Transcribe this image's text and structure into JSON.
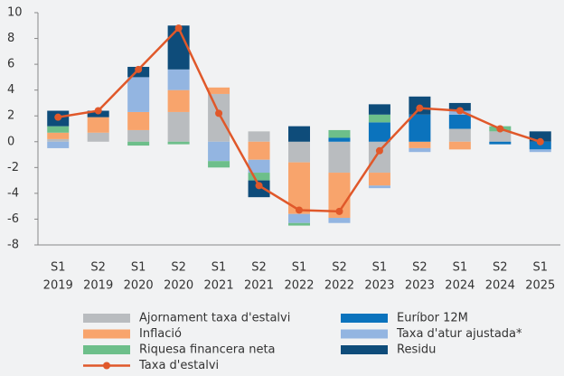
{
  "chart_data": {
    "type": "bar",
    "categories": [
      [
        "S1",
        "2019"
      ],
      [
        "S2",
        "2019"
      ],
      [
        "S1",
        "2020"
      ],
      [
        "S2",
        "2020"
      ],
      [
        "S1",
        "2021"
      ],
      [
        "S2",
        "2021"
      ],
      [
        "S1",
        "2022"
      ],
      [
        "S2",
        "2022"
      ],
      [
        "S1",
        "2023"
      ],
      [
        "S2",
        "2023"
      ],
      [
        "S1",
        "2024"
      ],
      [
        "S2",
        "2024"
      ],
      [
        "S1",
        "2025"
      ]
    ],
    "series": [
      {
        "name": "Ajornament taxa d'estalvi",
        "color": "#b9bcbf",
        "values": [
          0.2,
          0.7,
          0.9,
          2.3,
          3.7,
          0.8,
          -1.6,
          -2.4,
          -2.4,
          0,
          1.0,
          0.8,
          0
        ]
      },
      {
        "name": "Inflació",
        "color": "#f8a46c",
        "values": [
          0.5,
          1.2,
          1.4,
          1.7,
          0.5,
          -1.4,
          -4.0,
          -3.5,
          -1.0,
          -0.5,
          -0.6,
          0,
          0
        ]
      },
      {
        "name": "Riquesa financera neta",
        "color": "#6dbf8a",
        "values": [
          0.5,
          0,
          -0.3,
          -0.2,
          -0.5,
          -0.6,
          -0.2,
          0.6,
          0.6,
          0,
          0,
          0.4,
          0
        ]
      },
      {
        "name": "Euríbor 12M",
        "color": "#0b73bd",
        "values": [
          0,
          0,
          0,
          0,
          0,
          0,
          0,
          0.3,
          1.5,
          2.1,
          1.1,
          -0.2,
          -0.6
        ]
      },
      {
        "name": "Taxa d'atur ajustada*",
        "color": "#93b5e1",
        "values": [
          -0.5,
          0,
          2.7,
          1.6,
          -1.5,
          -1.0,
          -0.7,
          -0.4,
          -0.2,
          -0.3,
          0.3,
          0,
          -0.2
        ]
      },
      {
        "name": "Residu",
        "color": "#0e4c7a",
        "values": [
          1.2,
          0.5,
          0.8,
          3.4,
          0,
          -1.3,
          1.2,
          0,
          0.8,
          1.4,
          0.6,
          0,
          0.8
        ]
      },
      {
        "name": "Taxa d'estalvi",
        "type": "line",
        "color": "#e0582a",
        "values": [
          1.9,
          2.4,
          5.6,
          8.8,
          2.2,
          -3.4,
          -5.3,
          -5.4,
          -0.7,
          2.6,
          2.4,
          1.0,
          0
        ]
      }
    ],
    "ylim": [
      -8,
      10
    ],
    "yticks": [
      -8,
      -6,
      -4,
      -2,
      0,
      2,
      4,
      6,
      8,
      10
    ]
  }
}
